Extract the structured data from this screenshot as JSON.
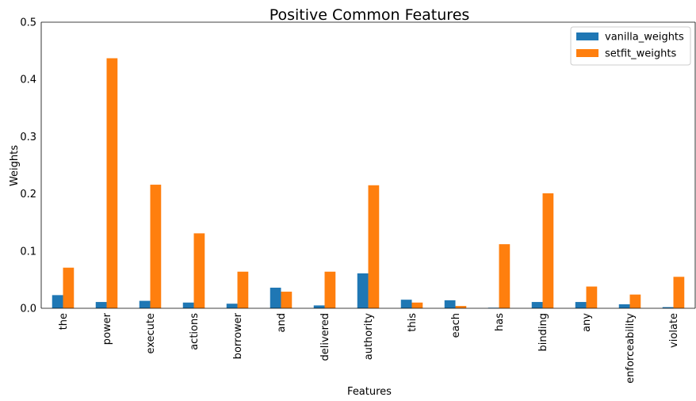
{
  "chart_data": {
    "type": "bar",
    "title": "Positive Common Features",
    "xlabel": "Features",
    "ylabel": "Weights",
    "ylim": [
      0,
      0.5
    ],
    "yticks": [
      "0.0",
      "0.1",
      "0.2",
      "0.3",
      "0.4",
      "0.5"
    ],
    "categories": [
      "the",
      "power",
      "execute",
      "actions",
      "borrower",
      "and",
      "delivered",
      "authority",
      "this",
      "each",
      "has",
      "binding",
      "any",
      "enforceability",
      "violate"
    ],
    "series": [
      {
        "name": "vanilla_weights",
        "color": "#1f77b4",
        "values": [
          0.023,
          0.011,
          0.013,
          0.01,
          0.008,
          0.036,
          0.005,
          0.061,
          0.015,
          0.014,
          0.001,
          0.011,
          0.011,
          0.007,
          0.002
        ]
      },
      {
        "name": "setfit_weights",
        "color": "#ff7f0e",
        "values": [
          0.071,
          0.437,
          0.216,
          0.131,
          0.064,
          0.029,
          0.064,
          0.215,
          0.01,
          0.004,
          0.112,
          0.201,
          0.038,
          0.024,
          0.055
        ]
      }
    ],
    "legend_position": "top-right",
    "grid": false
  }
}
